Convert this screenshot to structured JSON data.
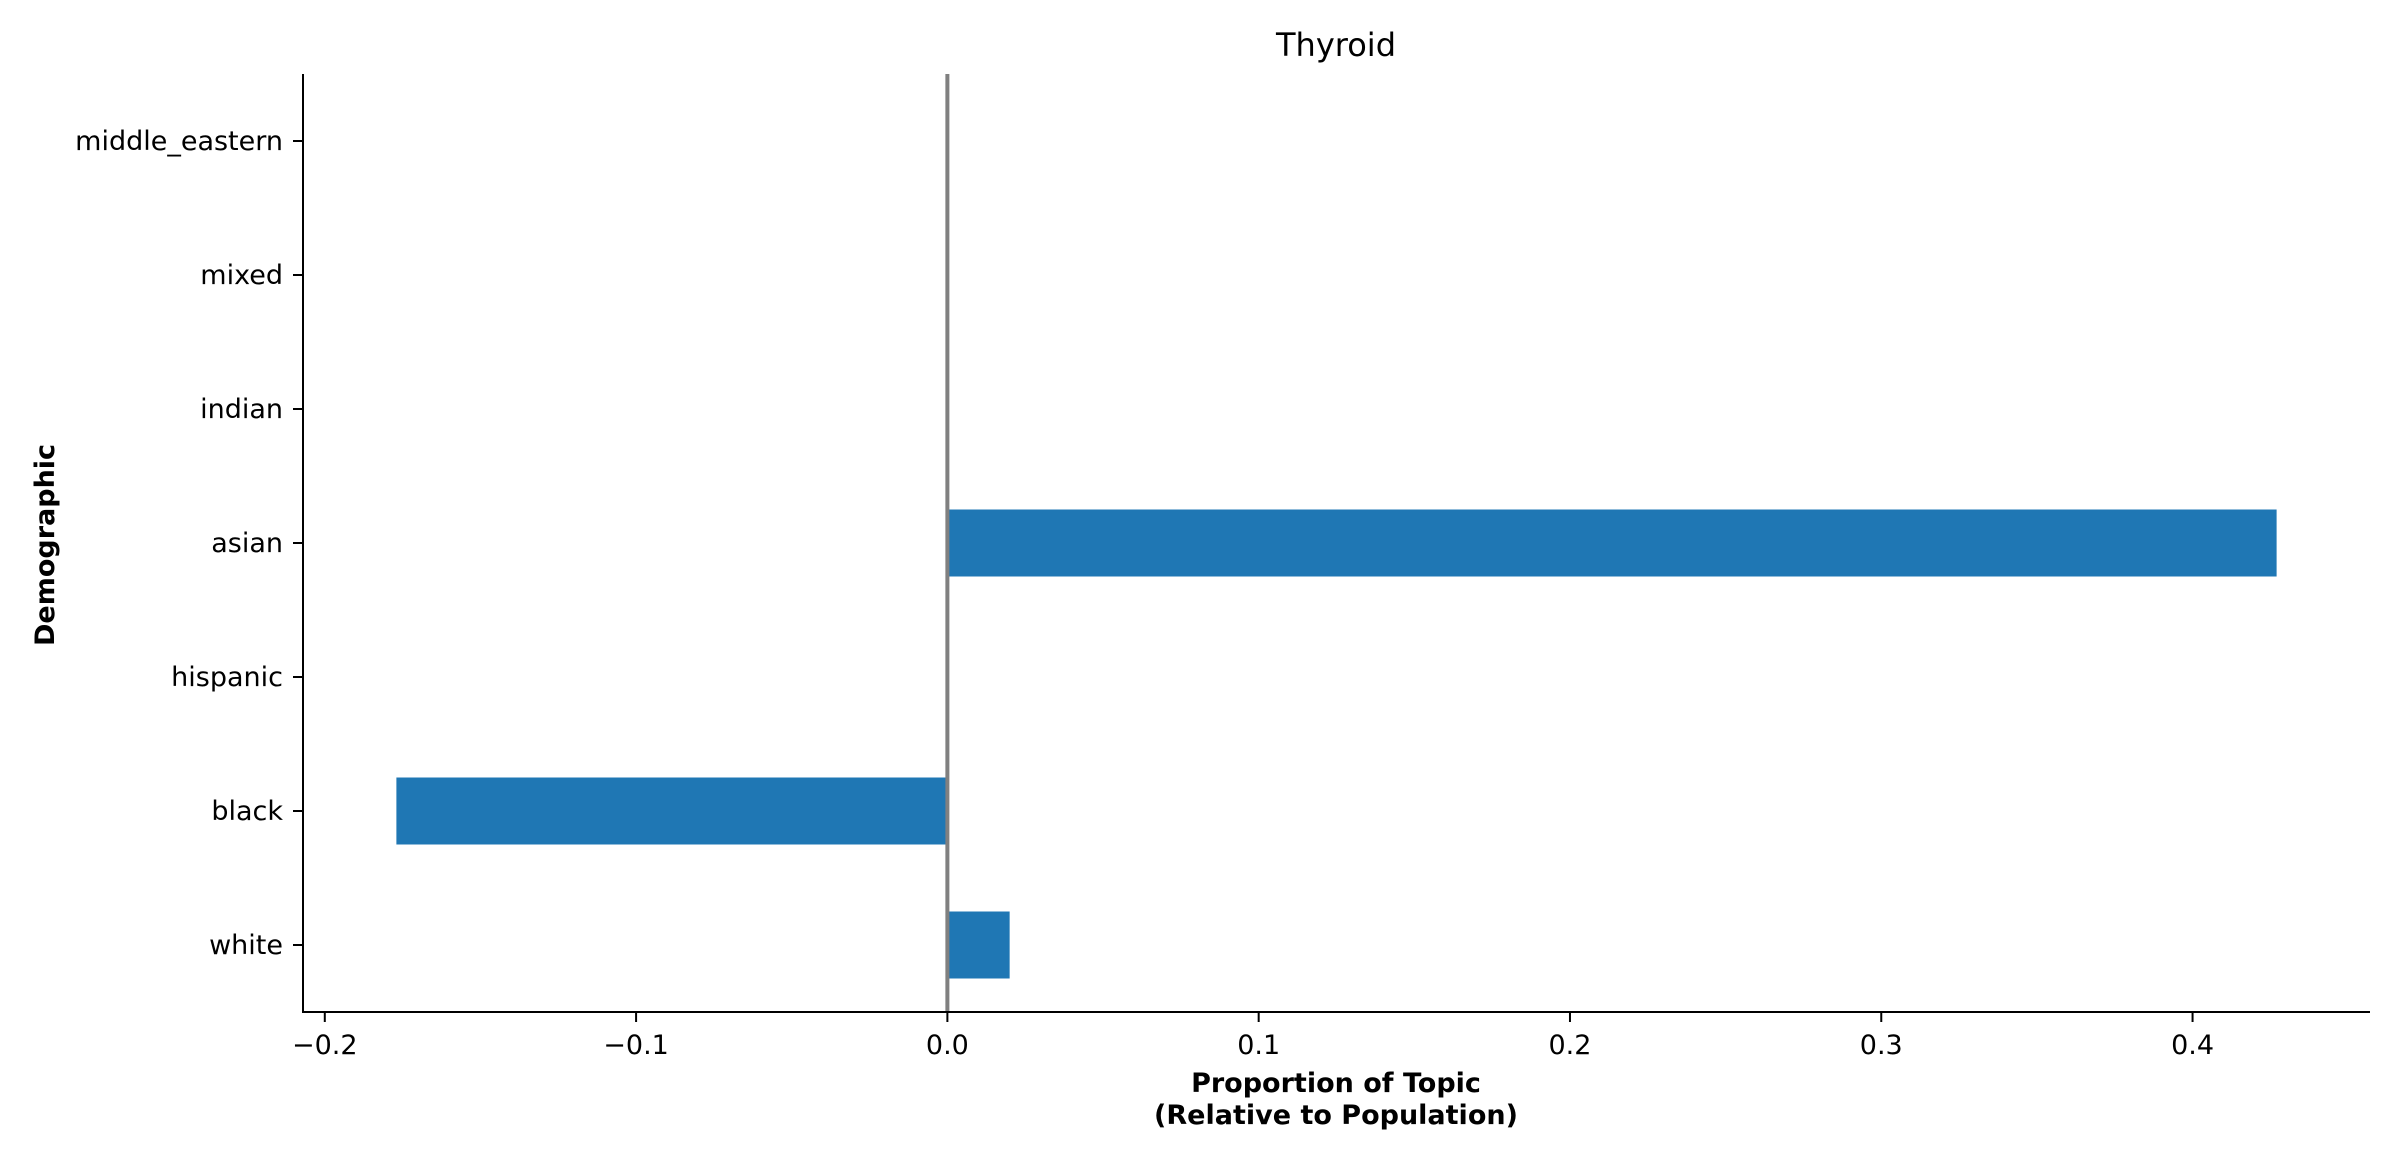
{
  "chart_data": {
    "type": "bar",
    "orientation": "horizontal",
    "title": "Thyroid",
    "xlabel_lines": [
      "Proportion of Topic",
      "(Relative to Population)"
    ],
    "ylabel": "Demographic",
    "categories": [
      "white",
      "black",
      "hispanic",
      "asian",
      "indian",
      "mixed",
      "middle_eastern"
    ],
    "values": [
      0.02,
      -0.177,
      0,
      0.427,
      0,
      0,
      0
    ],
    "xlim": [
      -0.207,
      0.457
    ],
    "xticks": [
      -0.2,
      -0.1,
      0.0,
      0.1,
      0.2,
      0.3,
      0.4
    ],
    "xtick_labels": [
      "−0.2",
      "−0.1",
      "0.0",
      "0.1",
      "0.2",
      "0.3",
      "0.4"
    ],
    "reference_line_x": 0,
    "grid": false,
    "legend": "none",
    "colors": {
      "bar": "#1f77b4",
      "reference_line": "#808080",
      "axis": "#000000"
    }
  }
}
